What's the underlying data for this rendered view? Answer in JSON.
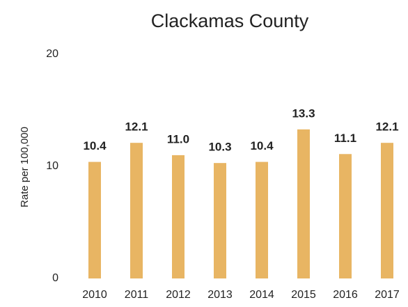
{
  "chart_data": {
    "type": "bar",
    "title": "Clackamas County",
    "y_label": "Rate per 100,000",
    "categories": [
      "2010",
      "2011",
      "2012",
      "2013",
      "2014",
      "2015",
      "2016",
      "2017"
    ],
    "values": [
      10.4,
      12.1,
      11.0,
      10.3,
      10.4,
      13.3,
      11.1,
      12.1
    ],
    "value_labels": [
      "10.4",
      "12.1",
      "11.0",
      "10.3",
      "10.4",
      "13.3",
      "11.1",
      "12.1"
    ],
    "color": "#e8b563",
    "ylim": [
      0,
      20
    ],
    "yticks": [
      0,
      10,
      20
    ],
    "grid": false
  }
}
